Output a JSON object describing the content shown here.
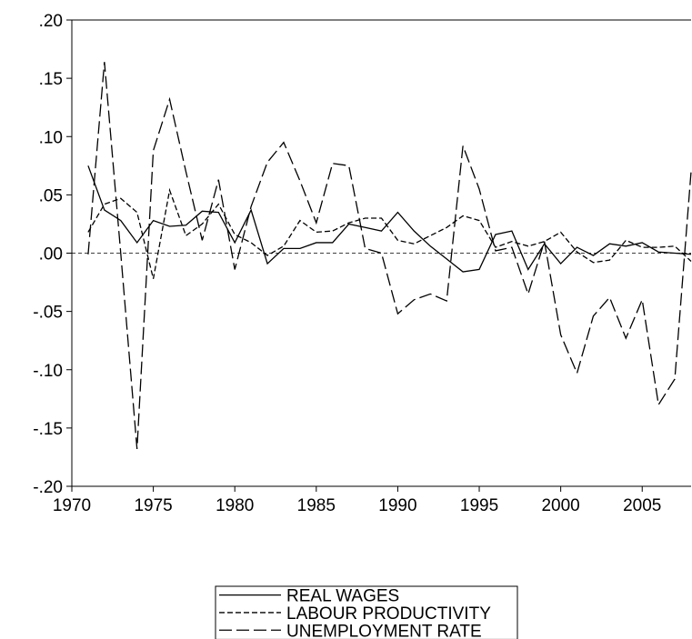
{
  "chart_data": {
    "type": "line",
    "x": [
      1971,
      1972,
      1973,
      1974,
      1975,
      1976,
      1977,
      1978,
      1979,
      1980,
      1981,
      1982,
      1983,
      1984,
      1985,
      1986,
      1987,
      1988,
      1989,
      1990,
      1991,
      1992,
      1993,
      1994,
      1995,
      1996,
      1997,
      1998,
      1999,
      2000,
      2001,
      2002,
      2003,
      2004,
      2005,
      2006,
      2007,
      2008
    ],
    "series": [
      {
        "name": "REAL WAGES",
        "color": "#000000",
        "values": [
          0.075,
          0.037,
          0.028,
          0.009,
          0.028,
          0.023,
          0.024,
          0.036,
          0.035,
          0.009,
          0.037,
          -0.009,
          0.004,
          0.004,
          0.009,
          0.009,
          0.025,
          0.022,
          0.019,
          0.035,
          0.019,
          0.006,
          -0.005,
          -0.016,
          -0.014,
          0.016,
          0.019,
          -0.014,
          0.008,
          -0.009,
          0.005,
          -0.002,
          0.008,
          0.006,
          0.009,
          0.001,
          0.0,
          -0.001
        ]
      },
      {
        "name": "LABOUR PRODUCTIVITY",
        "color": "#000000",
        "values": [
          0.018,
          0.042,
          0.047,
          0.035,
          -0.022,
          0.054,
          0.015,
          0.025,
          0.042,
          0.016,
          0.009,
          -0.002,
          0.006,
          0.028,
          0.018,
          0.019,
          0.026,
          0.03,
          0.03,
          0.011,
          0.008,
          0.015,
          0.022,
          0.032,
          0.028,
          0.005,
          0.01,
          0.006,
          0.01,
          0.018,
          0.001,
          -0.008,
          -0.006,
          0.011,
          0.005,
          0.005,
          0.006,
          -0.007
        ]
      },
      {
        "name": "UNEMPLOYMENT RATE",
        "color": "#000000",
        "values": [
          -0.001,
          0.164,
          0.0,
          -0.168,
          0.088,
          0.132,
          0.07,
          0.011,
          0.063,
          -0.014,
          0.04,
          0.078,
          0.095,
          0.062,
          0.026,
          0.077,
          0.075,
          0.004,
          0.0,
          -0.052,
          -0.04,
          -0.035,
          -0.041,
          0.092,
          0.055,
          0.002,
          0.005,
          -0.035,
          0.01,
          -0.07,
          -0.103,
          -0.054,
          -0.038,
          -0.073,
          -0.04,
          -0.13,
          -0.108,
          0.07
        ]
      }
    ],
    "xlim": [
      1970,
      2008
    ],
    "xticks": [
      1970,
      1975,
      1980,
      1985,
      1990,
      1995,
      2000,
      2005
    ],
    "ylim": [
      -0.2,
      0.2
    ],
    "yticks": [
      {
        "value": -0.2,
        "label": "-.20"
      },
      {
        "value": -0.15,
        "label": "-.15"
      },
      {
        "value": -0.1,
        "label": "-.10"
      },
      {
        "value": -0.05,
        "label": "-.05"
      },
      {
        "value": 0,
        "label": ".00"
      },
      {
        "value": 0.05,
        "label": ".05"
      },
      {
        "value": 0.1,
        "label": ".10"
      },
      {
        "value": 0.15,
        "label": ".15"
      },
      {
        "value": 0.2,
        "label": ".20"
      }
    ],
    "legend": "bottom"
  }
}
